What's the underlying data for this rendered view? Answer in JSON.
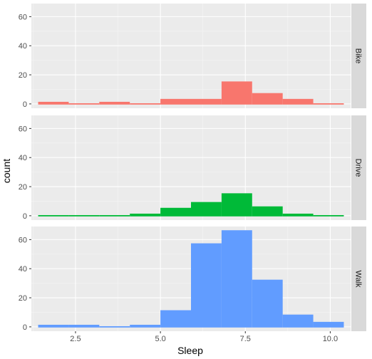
{
  "chart_data": {
    "type": "bar",
    "subtype": "faceted-histogram",
    "xlabel": "Sleep",
    "ylabel": "count",
    "xlim": [
      1.2,
      10.6
    ],
    "ylim": [
      -3,
      69
    ],
    "x_ticks": [
      2.5,
      5.0,
      7.5,
      10.0
    ],
    "x_tick_labels": [
      "2.5",
      "5.0",
      "7.5",
      "10.0"
    ],
    "y_ticks": [
      0,
      20,
      40,
      60
    ],
    "y_tick_labels": [
      "0",
      "20",
      "40",
      "60"
    ],
    "grid": true,
    "legend": "none",
    "bin_edges": [
      1.4,
      2.3,
      3.2,
      4.1,
      5.0,
      5.9,
      6.8,
      7.7,
      8.6,
      9.5,
      10.4
    ],
    "facets": [
      {
        "label": "Bike",
        "color": "#F8766D",
        "counts": [
          1,
          0,
          1,
          0,
          3,
          3,
          15,
          7,
          3,
          0
        ]
      },
      {
        "label": "Drive",
        "color": "#00BA38",
        "counts": [
          0,
          0,
          0,
          1,
          5,
          9,
          15,
          6,
          1,
          0
        ]
      },
      {
        "label": "Walk",
        "color": "#619CFF",
        "counts": [
          1,
          1,
          0,
          1,
          11,
          57,
          66,
          32,
          8,
          3
        ]
      }
    ]
  }
}
